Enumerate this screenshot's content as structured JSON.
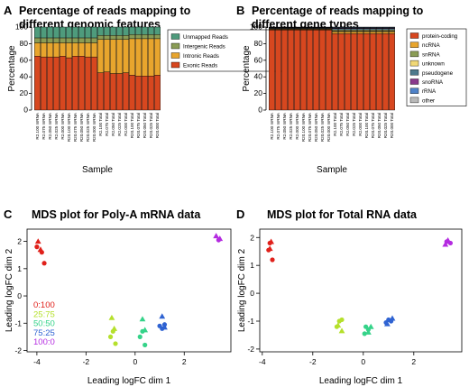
{
  "chart_data": [
    {
      "panel": "A",
      "type": "bar",
      "stacked": true,
      "title": "Percentage of reads mapping to different genomic features",
      "title_lines": [
        "Percentage of reads mapping to",
        "different genomic features"
      ],
      "xlabel": "Sample",
      "ylabel": "Percentage",
      "ylim": [
        0,
        100
      ],
      "yticks": [
        0,
        20,
        40,
        60,
        80,
        100
      ],
      "legend_position": "top-right",
      "categories": [
        "R2.100 mRNA",
        "R2.075 mRNA",
        "R2.050 mRNA",
        "R2.025 mRNA",
        "R2.000 mRNA",
        "R20.100 mRNA",
        "R20.075 mRNA",
        "R20.050 mRNA",
        "R20.025 mRNA",
        "R20.000 mRNA",
        "R2.100 Total",
        "R2.075 Total",
        "R2.050 Total",
        "R2.025 Total",
        "R2.000 Total",
        "R20.100 Total",
        "R20.075 Total",
        "R20.050 Total",
        "R20.025 Total",
        "R20.000 Total"
      ],
      "series": [
        {
          "name": "Exonic Reads",
          "color": "#d7471f",
          "values": [
            65,
            64,
            64,
            64,
            65,
            63,
            65,
            65,
            64,
            64,
            45,
            46,
            44,
            44,
            45,
            42,
            41,
            41,
            41,
            42
          ]
        },
        {
          "name": "Intronic Reads",
          "color": "#e8a52d",
          "values": [
            16,
            17,
            17,
            17,
            16,
            18,
            16,
            16,
            17,
            17,
            40,
            39,
            41,
            41,
            40,
            44,
            45,
            45,
            45,
            44
          ]
        },
        {
          "name": "Intergenic Reads",
          "color": "#8a9c55",
          "values": [
            6,
            6,
            6,
            6,
            6,
            6,
            6,
            6,
            6,
            6,
            5,
            5,
            5,
            5,
            5,
            5,
            5,
            5,
            5,
            5
          ]
        },
        {
          "name": "Unmapped Reads",
          "color": "#4e9b7c",
          "values": [
            13,
            13,
            13,
            13,
            13,
            13,
            13,
            13,
            13,
            13,
            10,
            10,
            10,
            10,
            10,
            9,
            9,
            9,
            9,
            9
          ]
        }
      ]
    },
    {
      "panel": "B",
      "type": "bar",
      "stacked": true,
      "title": "Percentage of reads mapping to different gene types",
      "title_lines": [
        "Percentage of reads mapping to",
        "different gene types"
      ],
      "xlabel": "Sample",
      "ylabel": "Percentage",
      "ylim": [
        0,
        100
      ],
      "yticks": [
        0,
        20,
        40,
        60,
        80,
        100
      ],
      "legend_position": "right",
      "categories": [
        "R2.100 mRNA",
        "R2.075 mRNA",
        "R2.050 mRNA",
        "R2.025 mRNA",
        "R2.000 mRNA",
        "R20.100 mRNA",
        "R20.075 mRNA",
        "R20.050 mRNA",
        "R20.025 mRNA",
        "R20.000 mRNA",
        "R2.100 Total",
        "R2.075 Total",
        "R2.050 Total",
        "R2.025 Total",
        "R2.000 Total",
        "R20.100 Total",
        "R20.075 Total",
        "R20.050 Total",
        "R20.025 Total",
        "R20.000 Total"
      ],
      "series": [
        {
          "name": "protein-coding",
          "color": "#d7471f",
          "values": [
            96.5,
            96.5,
            96.5,
            96.5,
            96.5,
            96.5,
            96.5,
            96.5,
            96.5,
            96.5,
            92,
            92,
            92,
            92,
            92,
            92,
            92,
            92,
            92,
            92
          ]
        },
        {
          "name": "ncRNA",
          "color": "#e8a52d",
          "values": [
            0.8,
            0.8,
            0.8,
            0.8,
            0.8,
            0.8,
            0.8,
            0.8,
            0.8,
            0.8,
            2.5,
            2.5,
            2.5,
            2.5,
            2.5,
            2.5,
            2.5,
            2.5,
            2.5,
            2.5
          ]
        },
        {
          "name": "snRNA",
          "color": "#8a9c55",
          "values": [
            0.4,
            0.4,
            0.4,
            0.4,
            0.4,
            0.4,
            0.4,
            0.4,
            0.4,
            0.4,
            1,
            1,
            1,
            1,
            1,
            1,
            1,
            1,
            1,
            1
          ]
        },
        {
          "name": "unknown",
          "color": "#f0d876",
          "values": [
            0.6,
            0.6,
            0.6,
            0.6,
            0.6,
            0.6,
            0.6,
            0.6,
            0.6,
            0.6,
            1,
            1,
            1,
            1,
            1,
            1,
            1,
            1,
            1,
            1
          ]
        },
        {
          "name": "pseudogene",
          "color": "#4e7a8c",
          "values": [
            0.6,
            0.6,
            0.6,
            0.6,
            0.6,
            0.6,
            0.6,
            0.6,
            0.6,
            0.6,
            1.5,
            1.5,
            1.5,
            1.5,
            1.5,
            1.5,
            1.5,
            1.5,
            1.5,
            1.5
          ]
        },
        {
          "name": "snoRNA",
          "color": "#8a3a8c",
          "values": [
            0.4,
            0.4,
            0.4,
            0.4,
            0.4,
            0.4,
            0.4,
            0.4,
            0.4,
            0.4,
            0.8,
            0.8,
            0.8,
            0.8,
            0.8,
            0.8,
            0.8,
            0.8,
            0.8,
            0.8
          ]
        },
        {
          "name": "rRNA",
          "color": "#4f82c8",
          "values": [
            0.3,
            0.3,
            0.3,
            0.3,
            0.3,
            0.3,
            0.3,
            0.3,
            0.3,
            0.3,
            0.7,
            0.7,
            0.7,
            0.7,
            0.7,
            0.7,
            0.7,
            0.7,
            0.7,
            0.7
          ]
        },
        {
          "name": "other",
          "color": "#b9b9b9",
          "values": [
            0.4,
            0.4,
            0.4,
            0.4,
            0.4,
            0.4,
            0.4,
            0.4,
            0.4,
            0.4,
            0.5,
            0.5,
            0.5,
            0.5,
            0.5,
            0.5,
            0.5,
            0.5,
            0.5,
            0.5
          ]
        }
      ]
    },
    {
      "panel": "C",
      "type": "scatter",
      "title": "MDS plot for Poly-A mRNA data",
      "xlabel": "Leading logFC dim 1",
      "ylabel": "Leading logFC dim 2",
      "xlim": [
        -4.4,
        3.9
      ],
      "ylim": [
        -2.05,
        2.45
      ],
      "xticks": [
        -4,
        -2,
        0,
        2
      ],
      "yticks": [
        -2,
        -1,
        0,
        1,
        2
      ],
      "legend_position": "bottom-left",
      "series": [
        {
          "name": "0:100",
          "color": "#e0211b",
          "points": [
            {
              "x": -4.0,
              "y": 1.8,
              "shape": "circle"
            },
            {
              "x": -3.8,
              "y": 1.6,
              "shape": "circle"
            },
            {
              "x": -3.7,
              "y": 1.2,
              "shape": "circle"
            },
            {
              "x": -3.95,
              "y": 2.0,
              "shape": "triangle"
            },
            {
              "x": -3.85,
              "y": 1.7,
              "shape": "triangle"
            }
          ]
        },
        {
          "name": "25:75",
          "color": "#b5e02c",
          "points": [
            {
              "x": -0.9,
              "y": -1.3,
              "shape": "circle"
            },
            {
              "x": -1.0,
              "y": -1.5,
              "shape": "circle"
            },
            {
              "x": -0.8,
              "y": -1.75,
              "shape": "circle"
            },
            {
              "x": -0.95,
              "y": -0.8,
              "shape": "triangle"
            },
            {
              "x": -0.85,
              "y": -1.2,
              "shape": "triangle"
            }
          ]
        },
        {
          "name": "50:50",
          "color": "#35d389",
          "points": [
            {
              "x": 0.3,
              "y": -1.3,
              "shape": "circle"
            },
            {
              "x": 0.4,
              "y": -1.8,
              "shape": "circle"
            },
            {
              "x": 0.2,
              "y": -1.5,
              "shape": "circle"
            },
            {
              "x": 0.3,
              "y": -0.85,
              "shape": "triangle"
            },
            {
              "x": 0.4,
              "y": -1.25,
              "shape": "triangle"
            }
          ]
        },
        {
          "name": "75:25",
          "color": "#2f63d2",
          "points": [
            {
              "x": 1.1,
              "y": -1.2,
              "shape": "circle"
            },
            {
              "x": 1.2,
              "y": -1.05,
              "shape": "circle"
            },
            {
              "x": 1.0,
              "y": -1.1,
              "shape": "circle"
            },
            {
              "x": 1.1,
              "y": -0.75,
              "shape": "triangle"
            },
            {
              "x": 1.2,
              "y": -1.15,
              "shape": "triangle"
            }
          ]
        },
        {
          "name": "100:0",
          "color": "#b42be0",
          "points": [
            {
              "x": 3.4,
              "y": 2.05,
              "shape": "circle"
            },
            {
              "x": 3.3,
              "y": 2.2,
              "shape": "triangle"
            },
            {
              "x": 3.45,
              "y": 2.1,
              "shape": "triangle"
            }
          ]
        }
      ]
    },
    {
      "panel": "D",
      "type": "scatter",
      "title": "MDS plot for Total RNA data",
      "xlabel": "Leading logFC dim 1",
      "ylabel": "Leading logFC dim 2",
      "xlim": [
        -4.1,
        3.9
      ],
      "ylim": [
        -2.1,
        2.3
      ],
      "xticks": [
        -4,
        -2,
        0,
        2
      ],
      "yticks": [
        -2,
        -1,
        0,
        1,
        2
      ],
      "series": [
        {
          "name": "0:100",
          "color": "#e0211b",
          "points": [
            {
              "x": -3.7,
              "y": 1.8,
              "shape": "circle"
            },
            {
              "x": -3.75,
              "y": 1.55,
              "shape": "circle"
            },
            {
              "x": -3.6,
              "y": 1.2,
              "shape": "circle"
            },
            {
              "x": -3.65,
              "y": 1.85,
              "shape": "triangle"
            },
            {
              "x": -3.7,
              "y": 1.6,
              "shape": "triangle"
            }
          ]
        },
        {
          "name": "25:75",
          "color": "#b5e02c",
          "points": [
            {
              "x": -0.95,
              "y": -1.0,
              "shape": "circle"
            },
            {
              "x": -1.05,
              "y": -1.2,
              "shape": "circle"
            },
            {
              "x": -0.85,
              "y": -0.95,
              "shape": "circle"
            },
            {
              "x": -0.85,
              "y": -1.35,
              "shape": "triangle"
            },
            {
              "x": -1.0,
              "y": -1.15,
              "shape": "triangle"
            }
          ]
        },
        {
          "name": "50:50",
          "color": "#35d389",
          "points": [
            {
              "x": 0.1,
              "y": -1.2,
              "shape": "circle"
            },
            {
              "x": 0.2,
              "y": -1.3,
              "shape": "circle"
            },
            {
              "x": 0.05,
              "y": -1.45,
              "shape": "circle"
            },
            {
              "x": 0.2,
              "y": -1.4,
              "shape": "triangle"
            },
            {
              "x": 0.3,
              "y": -1.2,
              "shape": "triangle"
            }
          ]
        },
        {
          "name": "75:25",
          "color": "#2f63d2",
          "points": [
            {
              "x": 0.9,
              "y": -1.05,
              "shape": "circle"
            },
            {
              "x": 1.0,
              "y": -0.95,
              "shape": "circle"
            },
            {
              "x": 1.1,
              "y": -1.0,
              "shape": "circle"
            },
            {
              "x": 0.95,
              "y": -1.1,
              "shape": "triangle"
            },
            {
              "x": 1.15,
              "y": -0.9,
              "shape": "triangle"
            }
          ]
        },
        {
          "name": "100:0",
          "color": "#b42be0",
          "points": [
            {
              "x": 3.3,
              "y": 1.85,
              "shape": "circle"
            },
            {
              "x": 3.45,
              "y": 1.8,
              "shape": "circle"
            },
            {
              "x": 3.35,
              "y": 1.9,
              "shape": "triangle"
            },
            {
              "x": 3.25,
              "y": 1.75,
              "shape": "triangle"
            }
          ]
        }
      ]
    }
  ]
}
